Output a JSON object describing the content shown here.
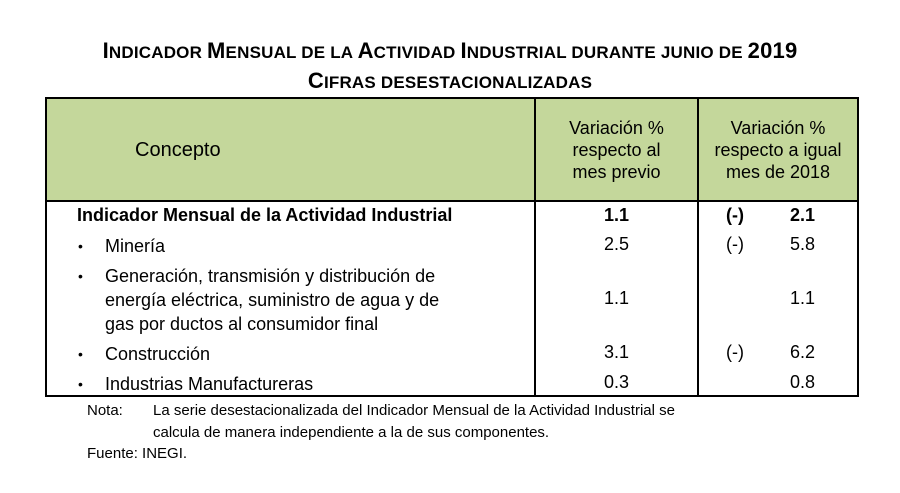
{
  "title": {
    "line1_parts": [
      {
        "text": "I",
        "big": true
      },
      {
        "text": "NDICADOR ",
        "big": false
      },
      {
        "text": "M",
        "big": true
      },
      {
        "text": "ENSUAL DE LA ",
        "big": false
      },
      {
        "text": "A",
        "big": true
      },
      {
        "text": "CTIVIDAD ",
        "big": false
      },
      {
        "text": "I",
        "big": true
      },
      {
        "text": "NDUSTRIAL DURANTE JUNIO DE ",
        "big": false
      },
      {
        "text": "2019",
        "big": true
      }
    ],
    "line2_parts": [
      {
        "text": "C",
        "big": true
      },
      {
        "text": "IFRAS DESESTACIONALIZADAS",
        "big": false
      }
    ]
  },
  "table": {
    "header": {
      "concepto": "Concepto",
      "col1": [
        "Variación %",
        "respecto al",
        "mes previo"
      ],
      "col2": [
        "Variación %",
        "respecto a igual",
        "mes de 2018"
      ]
    },
    "rows": [
      {
        "label": "Indicador Mensual de la Actividad Industrial",
        "bold": true,
        "bullet": false,
        "lines": [
          "Indicador Mensual de la Actividad Industrial"
        ],
        "v1": "1.1",
        "neg": "(-)",
        "v2": "2.1"
      },
      {
        "label": "Minería",
        "bold": false,
        "bullet": true,
        "lines": [
          "Minería"
        ],
        "v1": "2.5",
        "neg": "(-)",
        "v2": "5.8"
      },
      {
        "label": "Generación, transmisión y distribución de energía eléctrica, suministro de agua y de gas por ductos al consumidor final",
        "bold": false,
        "bullet": true,
        "lines": [
          "Generación, transmisión y distribución de",
          "energía eléctrica, suministro de agua y de",
          "gas por ductos al consumidor final"
        ],
        "v1": "1.1",
        "neg": "",
        "v2": "1.1"
      },
      {
        "label": "Construcción",
        "bold": false,
        "bullet": true,
        "lines": [
          "Construcción"
        ],
        "v1": "3.1",
        "neg": "(-)",
        "v2": "6.2"
      },
      {
        "label": "Industrias Manufactureras",
        "bold": false,
        "bullet": true,
        "lines": [
          "Industrias Manufactureras"
        ],
        "v1": "0.3",
        "neg": "",
        "v2": "0.8"
      }
    ]
  },
  "note": {
    "label": "Nota:",
    "line1": "La serie desestacionalizada del Indicador Mensual de la Actividad Industrial se",
    "line2": "calcula de manera independiente a la de sus componentes.",
    "source": "Fuente: INEGI."
  },
  "colors": {
    "header_bg": "#c4d79b",
    "border": "#000000"
  }
}
